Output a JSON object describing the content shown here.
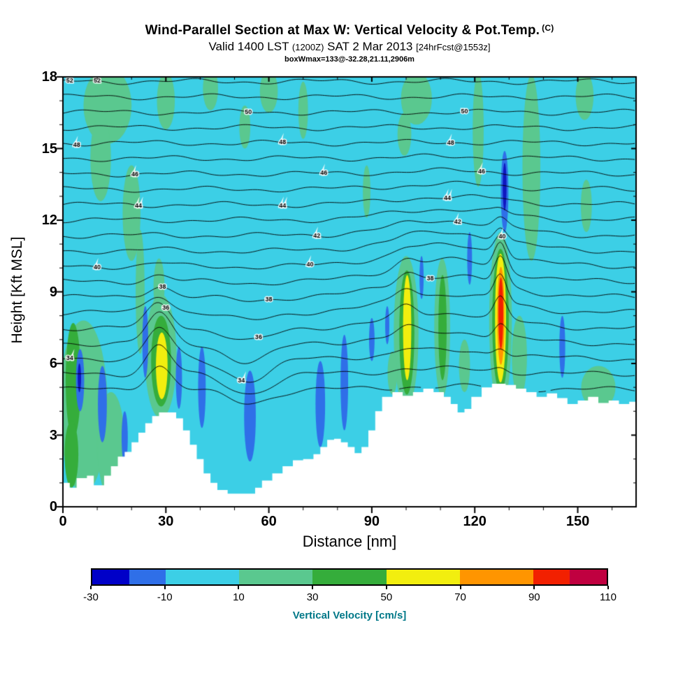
{
  "header": {
    "title": "Wind-Parallel Section at Max W: Vertical Velocity & Pot.Temp.",
    "title_unit": "(C)",
    "subtitle_parts": [
      "Valid 1400 LST ",
      "(1200Z)",
      " SAT 2 Mar 2013 ",
      "[24hrFcst@1553z]"
    ],
    "box_info": "boxWmax=133@-32.28,21.11,2906m"
  },
  "axes": {
    "x_label": "Distance [nm]",
    "y_label": "Height [Kft MSL]",
    "x_ticks": [
      0,
      30,
      60,
      90,
      120,
      150
    ],
    "y_ticks": [
      0,
      3,
      6,
      9,
      12,
      15,
      18
    ],
    "x_minor_step": 10,
    "y_minor_step": 1
  },
  "colorbar": {
    "caption": "Vertical Velocity [cm/s]",
    "caption_color": "#007888",
    "min": -30,
    "max": 110,
    "ticks": [
      -30,
      -10,
      10,
      30,
      50,
      70,
      90,
      110
    ],
    "segments": [
      {
        "color": "#0000C8",
        "span": 10
      },
      {
        "color": "#2F6FE8",
        "span": 10
      },
      {
        "color": "#3CCFE6",
        "span": 20
      },
      {
        "color": "#5AC88F",
        "span": 20
      },
      {
        "color": "#35AD3B",
        "span": 20
      },
      {
        "color": "#F2EE0F",
        "span": 20
      },
      {
        "color": "#FF9500",
        "span": 20
      },
      {
        "color": "#F22000",
        "span": 10
      },
      {
        "color": "#C00040",
        "span": 10
      }
    ]
  },
  "chart_data": {
    "type": "heatmap",
    "subtype": "vertical-cross-section with filled vertical-velocity field and potential-temperature isolines",
    "title": "Wind-Parallel Section at Max W: Vertical Velocity & Pot.Temp. (C)",
    "xlabel": "Distance [nm]",
    "ylabel": "Height [Kft MSL]",
    "fill_units": "cm/s",
    "isoline_units": "C",
    "x_range": [
      0,
      167
    ],
    "y_range": [
      0,
      18
    ],
    "palette": {
      "cyan": "#3CCFE6",
      "lg": "#5AC88F",
      "g": "#35AD3B",
      "y": "#F2EE0F",
      "o": "#FF9500",
      "r": "#F22000",
      "b": "#2F6FE8",
      "n": "#0F17C0",
      "terrain": "#FFFFFF"
    },
    "isolines": {
      "levels": [
        32,
        33,
        34,
        35,
        36,
        37,
        38,
        39,
        40,
        41,
        42,
        43,
        44,
        45,
        46,
        47,
        48,
        49,
        50,
        51,
        52
      ],
      "base_value": 34,
      "base_height_kft": 6.2,
      "kft_per_unit": 0.645,
      "labels": [
        [
          34,
          2
        ],
        [
          34,
          52
        ],
        [
          36,
          30
        ],
        [
          36,
          57
        ],
        [
          38,
          29
        ],
        [
          38,
          60
        ],
        [
          38,
          107
        ],
        [
          40,
          10
        ],
        [
          40,
          72
        ],
        [
          40,
          128
        ],
        [
          42,
          74
        ],
        [
          42,
          115
        ],
        [
          44,
          22
        ],
        [
          44,
          64
        ],
        [
          44,
          112
        ],
        [
          46,
          21
        ],
        [
          46,
          76
        ],
        [
          46,
          122
        ],
        [
          48,
          4
        ],
        [
          48,
          64
        ],
        [
          48,
          113
        ],
        [
          50,
          54
        ],
        [
          50,
          117
        ],
        [
          52,
          2
        ],
        [
          52,
          10
        ]
      ]
    },
    "terrain_steps": [
      [
        0,
        1.0
      ],
      [
        2,
        0.8
      ],
      [
        4,
        1.2
      ],
      [
        7,
        1.3
      ],
      [
        9,
        0.9
      ],
      [
        12,
        1.3
      ],
      [
        14,
        1.7
      ],
      [
        16,
        2.1
      ],
      [
        18,
        2.3
      ],
      [
        20,
        2.7
      ],
      [
        22,
        3.1
      ],
      [
        24,
        3.5
      ],
      [
        26,
        3.8
      ],
      [
        28,
        3.95
      ],
      [
        31,
        3.95
      ],
      [
        33,
        3.7
      ],
      [
        35,
        3.2
      ],
      [
        37,
        2.6
      ],
      [
        39,
        2.0
      ],
      [
        41,
        1.4
      ],
      [
        43,
        1.0
      ],
      [
        45,
        0.7
      ],
      [
        48,
        0.55
      ],
      [
        53,
        0.55
      ],
      [
        56,
        0.8
      ],
      [
        58,
        1.1
      ],
      [
        61,
        1.4
      ],
      [
        64,
        1.7
      ],
      [
        67,
        1.95
      ],
      [
        70,
        2.0
      ],
      [
        73,
        2.2
      ],
      [
        75,
        2.5
      ],
      [
        77,
        2.8
      ],
      [
        79,
        2.85
      ],
      [
        81,
        2.7
      ],
      [
        83,
        2.5
      ],
      [
        85,
        2.25
      ],
      [
        87,
        2.5
      ],
      [
        89,
        3.2
      ],
      [
        91,
        4.0
      ],
      [
        93,
        4.6
      ],
      [
        96,
        4.8
      ],
      [
        99,
        4.65
      ],
      [
        102,
        4.8
      ],
      [
        105,
        4.95
      ],
      [
        108,
        4.8
      ],
      [
        111,
        4.6
      ],
      [
        113,
        4.3
      ],
      [
        115,
        3.95
      ],
      [
        117,
        4.1
      ],
      [
        119,
        4.6
      ],
      [
        122,
        5.0
      ],
      [
        125,
        5.15
      ],
      [
        129,
        5.1
      ],
      [
        132,
        4.95
      ],
      [
        135,
        4.8
      ],
      [
        138,
        4.6
      ],
      [
        141,
        4.75
      ],
      [
        144,
        4.55
      ],
      [
        147,
        4.3
      ],
      [
        150,
        4.45
      ],
      [
        153,
        4.6
      ],
      [
        156,
        4.35
      ],
      [
        159,
        4.45
      ],
      [
        162,
        4.3
      ],
      [
        165,
        4.4
      ]
    ],
    "blob_format": "[x_nm, y_kft, rx_nm, ry_kft]",
    "blob_order": [
      "lg",
      "g",
      "y",
      "o",
      "r",
      "b",
      "n"
    ],
    "blobs": {
      "lg": [
        [
          13,
          16.8,
          7,
          1.6
        ],
        [
          11,
          14.6,
          3,
          1.8
        ],
        [
          20,
          12.3,
          2.6,
          2.0
        ],
        [
          22.5,
          9.0,
          1.3,
          2.6
        ],
        [
          30,
          17.0,
          2.6,
          1.2
        ],
        [
          43,
          17.5,
          2.2,
          0.9
        ],
        [
          60,
          17.4,
          2.6,
          0.9
        ],
        [
          53,
          15.9,
          1.6,
          0.9
        ],
        [
          70,
          16.6,
          1.4,
          1.2
        ],
        [
          103,
          17.1,
          4.5,
          1.1
        ],
        [
          99.5,
          15.6,
          2.0,
          0.9
        ],
        [
          121,
          15.8,
          1.6,
          2.4
        ],
        [
          136.5,
          14.2,
          2.6,
          3.9
        ],
        [
          152,
          17.2,
          2.6,
          1.0
        ],
        [
          152.5,
          12.6,
          1.6,
          1.1
        ],
        [
          88.5,
          13.2,
          1.1,
          1.1
        ],
        [
          6,
          4.2,
          7,
          3.6
        ],
        [
          14,
          2.6,
          4,
          2.2
        ],
        [
          28.5,
          6.3,
          4.6,
          2.6
        ],
        [
          28,
          9.2,
          1.6,
          1.2
        ],
        [
          100,
          7.3,
          3.6,
          3.2
        ],
        [
          110.5,
          7.5,
          2.3,
          2.9
        ],
        [
          127.5,
          7.8,
          3.3,
          3.7
        ],
        [
          133,
          6.3,
          2.2,
          1.7
        ],
        [
          117,
          5.9,
          1.6,
          1.1
        ],
        [
          156,
          5.0,
          5,
          0.9
        ],
        [
          96,
          5.6,
          1.4,
          0.9
        ]
      ],
      "g": [
        [
          3,
          5.3,
          2.2,
          2.4
        ],
        [
          2.5,
          2.2,
          2,
          1.4
        ],
        [
          28.6,
          6.1,
          2.9,
          1.9
        ],
        [
          100.2,
          7.3,
          2.2,
          2.6
        ],
        [
          110.6,
          7.5,
          1.2,
          2.2
        ],
        [
          127.5,
          7.8,
          2.4,
          3.0
        ]
      ],
      "y": [
        [
          28.8,
          5.9,
          1.7,
          1.4
        ],
        [
          100.3,
          7.5,
          1.2,
          2.2
        ],
        [
          127.5,
          7.9,
          1.6,
          2.7
        ]
      ],
      "o": [
        [
          127.6,
          8.0,
          1.05,
          2.05
        ]
      ],
      "r": [
        [
          127.6,
          8.1,
          0.7,
          1.5
        ]
      ],
      "b": [
        [
          5,
          5.3,
          1.2,
          1.3
        ],
        [
          11.5,
          4.3,
          1.3,
          1.6
        ],
        [
          18,
          2.9,
          0.9,
          1.1
        ],
        [
          24,
          6.9,
          0.85,
          1.5
        ],
        [
          33.8,
          5.4,
          0.9,
          1.3
        ],
        [
          40.5,
          5.0,
          1.1,
          1.7
        ],
        [
          54.5,
          3.8,
          1.7,
          1.9
        ],
        [
          75,
          4.3,
          1.4,
          1.8
        ],
        [
          82,
          5.2,
          1.1,
          2.0
        ],
        [
          90,
          7.0,
          0.8,
          0.9
        ],
        [
          94.5,
          7.6,
          0.6,
          0.8
        ],
        [
          104.5,
          9.6,
          0.6,
          0.9
        ],
        [
          118.5,
          10.4,
          0.7,
          1.1
        ],
        [
          128.7,
          13.2,
          1.1,
          1.7
        ],
        [
          145.5,
          6.7,
          0.85,
          1.3
        ]
      ],
      "n": [
        [
          128.7,
          13.4,
          0.55,
          1.0
        ],
        [
          4.8,
          5.4,
          0.5,
          0.6
        ]
      ]
    },
    "notable_features": {
      "max_updraft": {
        "x_nm": 127.5,
        "y_kft": 8,
        "value_cms": "90-110"
      },
      "secondary_updrafts": [
        {
          "x_nm": 29,
          "y_kft": 6
        },
        {
          "x_nm": 100,
          "y_kft": 7.5
        }
      ],
      "upper_downdraft": {
        "x_nm": 128.7,
        "y_kft": 13.3,
        "value_cms": "-20 to -30"
      }
    }
  }
}
